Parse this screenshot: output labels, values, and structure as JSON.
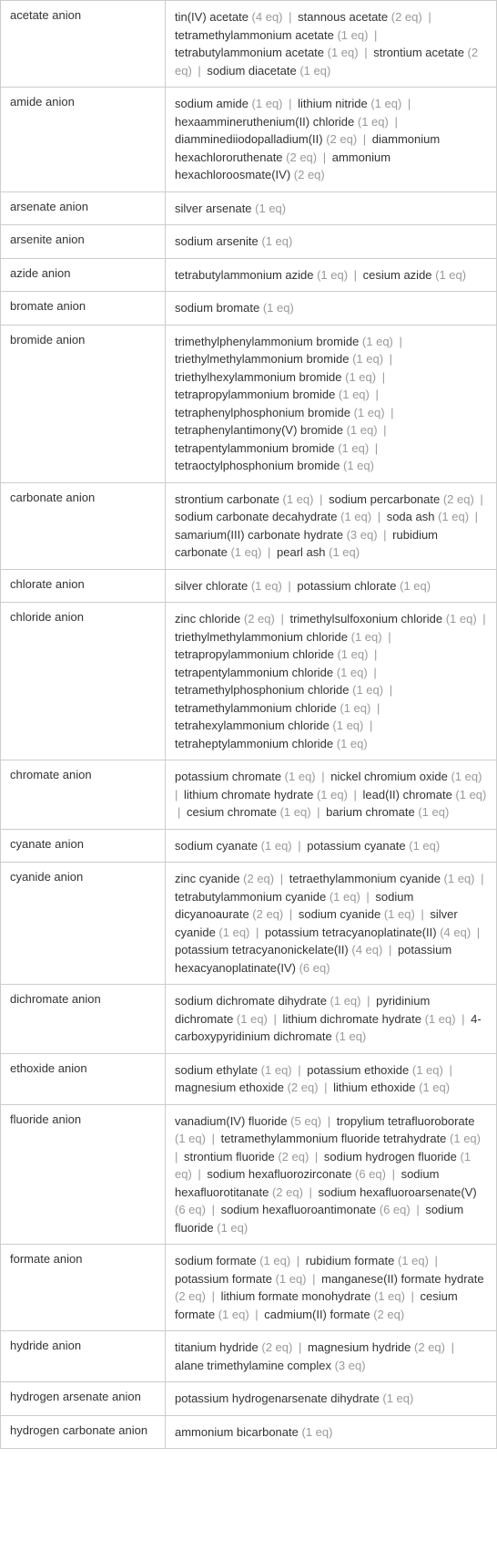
{
  "rows": [
    {
      "anion": "acetate anion",
      "compounds": [
        {
          "name": "tin(IV) acetate",
          "eq": "(4 eq)"
        },
        {
          "name": "stannous acetate",
          "eq": "(2 eq)"
        },
        {
          "name": "tetramethylammonium acetate",
          "eq": "(1 eq)"
        },
        {
          "name": "tetrabutylammonium acetate",
          "eq": "(1 eq)"
        },
        {
          "name": "strontium acetate",
          "eq": "(2 eq)"
        },
        {
          "name": "sodium diacetate",
          "eq": "(1 eq)"
        }
      ]
    },
    {
      "anion": "amide anion",
      "compounds": [
        {
          "name": "sodium amide",
          "eq": "(1 eq)"
        },
        {
          "name": "lithium nitride",
          "eq": "(1 eq)"
        },
        {
          "name": "hexaammineruthenium(II) chloride",
          "eq": "(1 eq)"
        },
        {
          "name": "diamminediiodopalladium(II)",
          "eq": "(2 eq)"
        },
        {
          "name": "diammonium hexachlororuthenate",
          "eq": "(2 eq)"
        },
        {
          "name": "ammonium hexachloroosmate(IV)",
          "eq": "(2 eq)"
        }
      ]
    },
    {
      "anion": "arsenate anion",
      "compounds": [
        {
          "name": "silver arsenate",
          "eq": "(1 eq)"
        }
      ]
    },
    {
      "anion": "arsenite anion",
      "compounds": [
        {
          "name": "sodium arsenite",
          "eq": "(1 eq)"
        }
      ]
    },
    {
      "anion": "azide anion",
      "compounds": [
        {
          "name": "tetrabutylammonium azide",
          "eq": "(1 eq)"
        },
        {
          "name": "cesium azide",
          "eq": "(1 eq)"
        }
      ]
    },
    {
      "anion": "bromate anion",
      "compounds": [
        {
          "name": "sodium bromate",
          "eq": "(1 eq)"
        }
      ]
    },
    {
      "anion": "bromide anion",
      "compounds": [
        {
          "name": "trimethylphenylammonium bromide",
          "eq": "(1 eq)"
        },
        {
          "name": "triethylmethylammonium bromide",
          "eq": "(1 eq)"
        },
        {
          "name": "triethylhexylammonium bromide",
          "eq": "(1 eq)"
        },
        {
          "name": "tetrapropylammonium bromide",
          "eq": "(1 eq)"
        },
        {
          "name": "tetraphenylphosphonium bromide",
          "eq": "(1 eq)"
        },
        {
          "name": "tetraphenylantimony(V) bromide",
          "eq": "(1 eq)"
        },
        {
          "name": "tetrapentylammonium bromide",
          "eq": "(1 eq)"
        },
        {
          "name": "tetraoctylphosphonium bromide",
          "eq": "(1 eq)"
        }
      ]
    },
    {
      "anion": "carbonate anion",
      "compounds": [
        {
          "name": "strontium carbonate",
          "eq": "(1 eq)"
        },
        {
          "name": "sodium percarbonate",
          "eq": "(2 eq)"
        },
        {
          "name": "sodium carbonate decahydrate",
          "eq": "(1 eq)"
        },
        {
          "name": "soda ash",
          "eq": "(1 eq)"
        },
        {
          "name": "samarium(III) carbonate hydrate",
          "eq": "(3 eq)"
        },
        {
          "name": "rubidium carbonate",
          "eq": "(1 eq)"
        },
        {
          "name": "pearl ash",
          "eq": "(1 eq)"
        }
      ]
    },
    {
      "anion": "chlorate anion",
      "compounds": [
        {
          "name": "silver chlorate",
          "eq": "(1 eq)"
        },
        {
          "name": "potassium chlorate",
          "eq": "(1 eq)"
        }
      ]
    },
    {
      "anion": "chloride anion",
      "compounds": [
        {
          "name": "zinc chloride",
          "eq": "(2 eq)"
        },
        {
          "name": "trimethylsulfoxonium chloride",
          "eq": "(1 eq)"
        },
        {
          "name": "triethylmethylammonium chloride",
          "eq": "(1 eq)"
        },
        {
          "name": "tetrapropylammonium chloride",
          "eq": "(1 eq)"
        },
        {
          "name": "tetrapentylammonium chloride",
          "eq": "(1 eq)"
        },
        {
          "name": "tetramethylphosphonium chloride",
          "eq": "(1 eq)"
        },
        {
          "name": "tetramethylammonium chloride",
          "eq": "(1 eq)"
        },
        {
          "name": "tetrahexylammonium chloride",
          "eq": "(1 eq)"
        },
        {
          "name": "tetraheptylammonium chloride",
          "eq": "(1 eq)"
        }
      ]
    },
    {
      "anion": "chromate anion",
      "compounds": [
        {
          "name": "potassium chromate",
          "eq": "(1 eq)"
        },
        {
          "name": "nickel chromium oxide",
          "eq": "(1 eq)"
        },
        {
          "name": "lithium chromate hydrate",
          "eq": "(1 eq)"
        },
        {
          "name": "lead(II) chromate",
          "eq": "(1 eq)"
        },
        {
          "name": "cesium chromate",
          "eq": "(1 eq)"
        },
        {
          "name": "barium chromate",
          "eq": "(1 eq)"
        }
      ]
    },
    {
      "anion": "cyanate anion",
      "compounds": [
        {
          "name": "sodium cyanate",
          "eq": "(1 eq)"
        },
        {
          "name": "potassium cyanate",
          "eq": "(1 eq)"
        }
      ]
    },
    {
      "anion": "cyanide anion",
      "compounds": [
        {
          "name": "zinc cyanide",
          "eq": "(2 eq)"
        },
        {
          "name": "tetraethylammonium cyanide",
          "eq": "(1 eq)"
        },
        {
          "name": "tetrabutylammonium cyanide",
          "eq": "(1 eq)"
        },
        {
          "name": "sodium dicyanoaurate",
          "eq": "(2 eq)"
        },
        {
          "name": "sodium cyanide",
          "eq": "(1 eq)"
        },
        {
          "name": "silver cyanide",
          "eq": "(1 eq)"
        },
        {
          "name": "potassium tetracyanoplatinate(II)",
          "eq": "(4 eq)"
        },
        {
          "name": "potassium tetracyanonickelate(II)",
          "eq": "(4 eq)"
        },
        {
          "name": "potassium hexacyanoplatinate(IV)",
          "eq": "(6 eq)"
        }
      ]
    },
    {
      "anion": "dichromate anion",
      "compounds": [
        {
          "name": "sodium dichromate dihydrate",
          "eq": "(1 eq)"
        },
        {
          "name": "pyridinium dichromate",
          "eq": "(1 eq)"
        },
        {
          "name": "lithium dichromate hydrate",
          "eq": "(1 eq)"
        },
        {
          "name": "4-carboxypyridinium dichromate",
          "eq": "(1 eq)"
        }
      ]
    },
    {
      "anion": "ethoxide anion",
      "compounds": [
        {
          "name": "sodium ethylate",
          "eq": "(1 eq)"
        },
        {
          "name": "potassium ethoxide",
          "eq": "(1 eq)"
        },
        {
          "name": "magnesium ethoxide",
          "eq": "(2 eq)"
        },
        {
          "name": "lithium ethoxide",
          "eq": "(1 eq)"
        }
      ]
    },
    {
      "anion": "fluoride anion",
      "compounds": [
        {
          "name": "vanadium(IV) fluoride",
          "eq": "(5 eq)"
        },
        {
          "name": "tropylium tetrafluoroborate",
          "eq": "(1 eq)"
        },
        {
          "name": "tetramethylammonium fluoride tetrahydrate",
          "eq": "(1 eq)"
        },
        {
          "name": "strontium fluoride",
          "eq": "(2 eq)"
        },
        {
          "name": "sodium hydrogen fluoride",
          "eq": "(1 eq)"
        },
        {
          "name": "sodium hexafluorozirconate",
          "eq": "(6 eq)"
        },
        {
          "name": "sodium hexafluorotitanate",
          "eq": "(2 eq)"
        },
        {
          "name": "sodium hexafluoroarsenate(V)",
          "eq": "(6 eq)"
        },
        {
          "name": "sodium hexafluoroantimonate",
          "eq": "(6 eq)"
        },
        {
          "name": "sodium fluoride",
          "eq": "(1 eq)"
        }
      ]
    },
    {
      "anion": "formate anion",
      "compounds": [
        {
          "name": "sodium formate",
          "eq": "(1 eq)"
        },
        {
          "name": "rubidium formate",
          "eq": "(1 eq)"
        },
        {
          "name": "potassium formate",
          "eq": "(1 eq)"
        },
        {
          "name": "manganese(II) formate hydrate",
          "eq": "(2 eq)"
        },
        {
          "name": "lithium formate monohydrate",
          "eq": "(1 eq)"
        },
        {
          "name": "cesium formate",
          "eq": "(1 eq)"
        },
        {
          "name": "cadmium(II) formate",
          "eq": "(2 eq)"
        }
      ]
    },
    {
      "anion": "hydride anion",
      "compounds": [
        {
          "name": "titanium hydride",
          "eq": "(2 eq)"
        },
        {
          "name": "magnesium hydride",
          "eq": "(2 eq)"
        },
        {
          "name": "alane trimethylamine complex",
          "eq": "(3 eq)"
        }
      ]
    },
    {
      "anion": "hydrogen arsenate anion",
      "compounds": [
        {
          "name": "potassium hydrogenarsenate dihydrate",
          "eq": "(1 eq)"
        }
      ]
    },
    {
      "anion": "hydrogen carbonate anion",
      "compounds": [
        {
          "name": "ammonium bicarbonate",
          "eq": "(1 eq)"
        }
      ]
    }
  ],
  "separator": "|",
  "colors": {
    "text": "#333333",
    "eq": "#999999",
    "border": "#cccccc",
    "background": "#ffffff"
  }
}
